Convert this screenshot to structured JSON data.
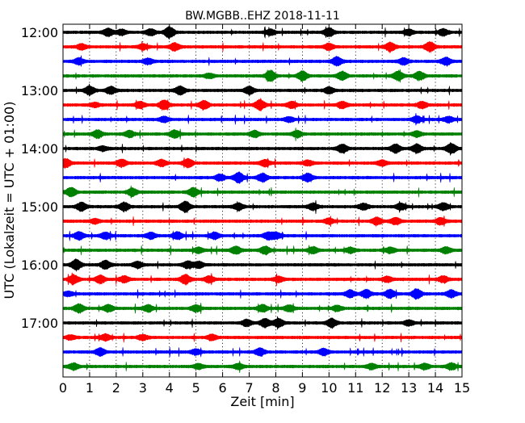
{
  "chart_data": {
    "type": "line",
    "title": "BW.MGBB..EHZ 2018-11-11",
    "xlabel": "Zeit  [min]",
    "ylabel": "UTC (Lokalzeit = UTC + 01:00)",
    "xlim": [
      0,
      15
    ],
    "x_ticks": [
      "0",
      "1",
      "2",
      "3",
      "4",
      "5",
      "6",
      "7",
      "8",
      "9",
      "10",
      "11",
      "12",
      "13",
      "14",
      "15"
    ],
    "y_ticks": [
      {
        "label": "12:00",
        "row": 0
      },
      {
        "label": "13:00",
        "row": 4
      },
      {
        "label": "14:00",
        "row": 8
      },
      {
        "label": "15:00",
        "row": 12
      },
      {
        "label": "16:00",
        "row": 16
      },
      {
        "label": "17:00",
        "row": 20
      }
    ],
    "grid": {
      "x": true,
      "style": "dotted"
    },
    "trace_interval_min": 15,
    "trace_colors": [
      "#000000",
      "#ff0000",
      "#0000ff",
      "#008000"
    ],
    "traces": [
      {
        "start": "12:00",
        "color": "#000000",
        "bursts": [
          [
            1.7,
            0.7
          ],
          [
            2.2,
            0.5
          ],
          [
            3.3,
            0.6
          ],
          [
            4.0,
            1.0
          ],
          [
            7.8,
            0.5
          ],
          [
            10.0,
            0.8
          ],
          [
            13.0,
            0.5
          ],
          [
            14.3,
            0.6
          ]
        ]
      },
      {
        "start": "12:15",
        "color": "#ff0000",
        "bursts": [
          [
            0.7,
            0.5
          ],
          [
            3.0,
            0.5
          ],
          [
            4.2,
            0.7
          ],
          [
            10.0,
            0.6
          ],
          [
            12.3,
            0.8
          ],
          [
            13.8,
            0.9
          ]
        ]
      },
      {
        "start": "12:30",
        "color": "#0000ff",
        "bursts": [
          [
            0.6,
            0.6
          ],
          [
            3.2,
            0.5
          ],
          [
            10.3,
            0.8
          ],
          [
            12.8,
            0.6
          ],
          [
            14.4,
            0.7
          ]
        ]
      },
      {
        "start": "12:45",
        "color": "#008000",
        "bursts": [
          [
            5.5,
            0.4
          ],
          [
            7.8,
            1.0
          ],
          [
            9.0,
            0.9
          ],
          [
            10.5,
            0.8
          ],
          [
            12.6,
            0.9
          ],
          [
            13.4,
            0.8
          ]
        ]
      },
      {
        "start": "13:00",
        "color": "#000000",
        "bursts": [
          [
            1.0,
            0.8
          ],
          [
            1.8,
            0.7
          ],
          [
            4.4,
            0.8
          ],
          [
            7.0,
            0.7
          ],
          [
            10.0,
            0.6
          ]
        ]
      },
      {
        "start": "13:15",
        "color": "#ff0000",
        "bursts": [
          [
            1.2,
            0.4
          ],
          [
            2.9,
            0.6
          ],
          [
            3.8,
            0.9
          ],
          [
            5.3,
            0.8
          ],
          [
            7.4,
            1.0
          ],
          [
            8.6,
            0.6
          ],
          [
            10.5,
            0.6
          ],
          [
            13.5,
            0.6
          ]
        ]
      },
      {
        "start": "13:30",
        "color": "#0000ff",
        "bursts": [
          [
            3.8,
            0.5
          ],
          [
            8.5,
            0.4
          ],
          [
            13.3,
            0.6
          ],
          [
            14.5,
            0.5
          ]
        ]
      },
      {
        "start": "13:45",
        "color": "#008000",
        "bursts": [
          [
            1.3,
            0.7
          ],
          [
            2.5,
            0.6
          ],
          [
            4.2,
            0.7
          ],
          [
            7.2,
            0.6
          ],
          [
            8.8,
            0.6
          ],
          [
            13.3,
            0.5
          ]
        ]
      },
      {
        "start": "14:00",
        "color": "#000000",
        "bursts": [
          [
            1.5,
            0.4
          ],
          [
            10.5,
            0.8
          ],
          [
            12.5,
            0.8
          ],
          [
            13.3,
            0.8
          ],
          [
            14.6,
            1.0
          ]
        ]
      },
      {
        "start": "14:15",
        "color": "#ff0000",
        "bursts": [
          [
            0.1,
            0.8
          ],
          [
            2.2,
            0.7
          ],
          [
            3.7,
            0.6
          ],
          [
            4.7,
            0.8
          ],
          [
            7.6,
            0.6
          ],
          [
            9.2,
            0.5
          ],
          [
            12.0,
            0.5
          ]
        ]
      },
      {
        "start": "14:30",
        "color": "#0000ff",
        "bursts": [
          [
            5.9,
            0.6
          ],
          [
            6.6,
            1.0
          ],
          [
            7.5,
            0.8
          ],
          [
            9.2,
            0.8
          ]
        ]
      },
      {
        "start": "14:45",
        "color": "#008000",
        "bursts": [
          [
            0.3,
            0.9
          ],
          [
            2.6,
            0.7
          ],
          [
            4.9,
            0.8
          ]
        ]
      },
      {
        "start": "15:00",
        "color": "#000000",
        "bursts": [
          [
            0.7,
            0.8
          ],
          [
            2.3,
            0.8
          ],
          [
            4.6,
            1.0
          ],
          [
            6.6,
            0.6
          ],
          [
            9.4,
            0.6
          ],
          [
            11.3,
            0.6
          ],
          [
            12.7,
            0.6
          ],
          [
            14.3,
            0.7
          ]
        ]
      },
      {
        "start": "15:15",
        "color": "#ff0000",
        "bursts": [
          [
            1.2,
            0.4
          ],
          [
            10.0,
            0.5
          ],
          [
            11.8,
            0.7
          ],
          [
            12.5,
            0.7
          ],
          [
            14.2,
            0.6
          ]
        ]
      },
      {
        "start": "15:30",
        "color": "#0000ff",
        "bursts": [
          [
            0.6,
            0.7
          ],
          [
            1.6,
            0.6
          ],
          [
            3.3,
            0.6
          ],
          [
            4.3,
            0.7
          ],
          [
            5.7,
            0.6
          ],
          [
            7.7,
            0.6
          ],
          [
            8.0,
            0.6
          ]
        ]
      },
      {
        "start": "15:45",
        "color": "#008000",
        "bursts": [
          [
            5.1,
            0.5
          ],
          [
            6.5,
            0.7
          ],
          [
            7.6,
            0.7
          ],
          [
            9.4,
            0.6
          ],
          [
            10.8,
            0.5
          ],
          [
            12.3,
            0.5
          ],
          [
            14.4,
            0.6
          ]
        ]
      },
      {
        "start": "16:00",
        "color": "#000000",
        "bursts": [
          [
            0.5,
            1.0
          ],
          [
            1.6,
            0.8
          ],
          [
            2.8,
            0.6
          ],
          [
            4.7,
            0.7
          ],
          [
            5.1,
            0.6
          ]
        ]
      },
      {
        "start": "16:15",
        "color": "#ff0000",
        "bursts": [
          [
            0.4,
            0.8
          ],
          [
            1.4,
            0.7
          ],
          [
            2.3,
            0.6
          ],
          [
            4.6,
            0.9
          ],
          [
            5.5,
            0.6
          ],
          [
            8.1,
            0.5
          ],
          [
            12.2,
            0.5
          ],
          [
            14.3,
            0.6
          ]
        ]
      },
      {
        "start": "16:30",
        "color": "#0000ff",
        "bursts": [
          [
            0.2,
            0.4
          ],
          [
            10.8,
            0.7
          ],
          [
            11.4,
            0.8
          ],
          [
            12.3,
            0.8
          ],
          [
            13.3,
            0.9
          ],
          [
            14.6,
            0.7
          ]
        ]
      },
      {
        "start": "16:45",
        "color": "#008000",
        "bursts": [
          [
            0.6,
            0.8
          ],
          [
            1.7,
            0.7
          ],
          [
            3.2,
            0.6
          ],
          [
            5.0,
            0.6
          ],
          [
            7.5,
            0.7
          ],
          [
            8.5,
            0.6
          ],
          [
            10.3,
            0.5
          ]
        ]
      },
      {
        "start": "17:00",
        "color": "#000000",
        "bursts": [
          [
            6.9,
            0.6
          ],
          [
            7.6,
            0.8
          ],
          [
            8.1,
            0.8
          ],
          [
            10.1,
            0.8
          ],
          [
            13.0,
            0.5
          ]
        ]
      },
      {
        "start": "17:15",
        "color": "#ff0000",
        "bursts": [
          [
            0.3,
            0.4
          ],
          [
            1.6,
            0.6
          ],
          [
            3.0,
            0.5
          ],
          [
            5.6,
            0.5
          ]
        ]
      },
      {
        "start": "17:30",
        "color": "#0000ff",
        "bursts": [
          [
            1.4,
            0.7
          ],
          [
            5.0,
            0.5
          ],
          [
            7.4,
            0.7
          ],
          [
            9.8,
            0.6
          ]
        ]
      },
      {
        "start": "17:45",
        "color": "#008000",
        "bursts": [
          [
            0.4,
            0.6
          ],
          [
            5.1,
            0.5
          ],
          [
            6.6,
            0.5
          ],
          [
            11.6,
            0.5
          ],
          [
            13.6,
            0.5
          ],
          [
            14.6,
            0.6
          ]
        ]
      }
    ]
  }
}
